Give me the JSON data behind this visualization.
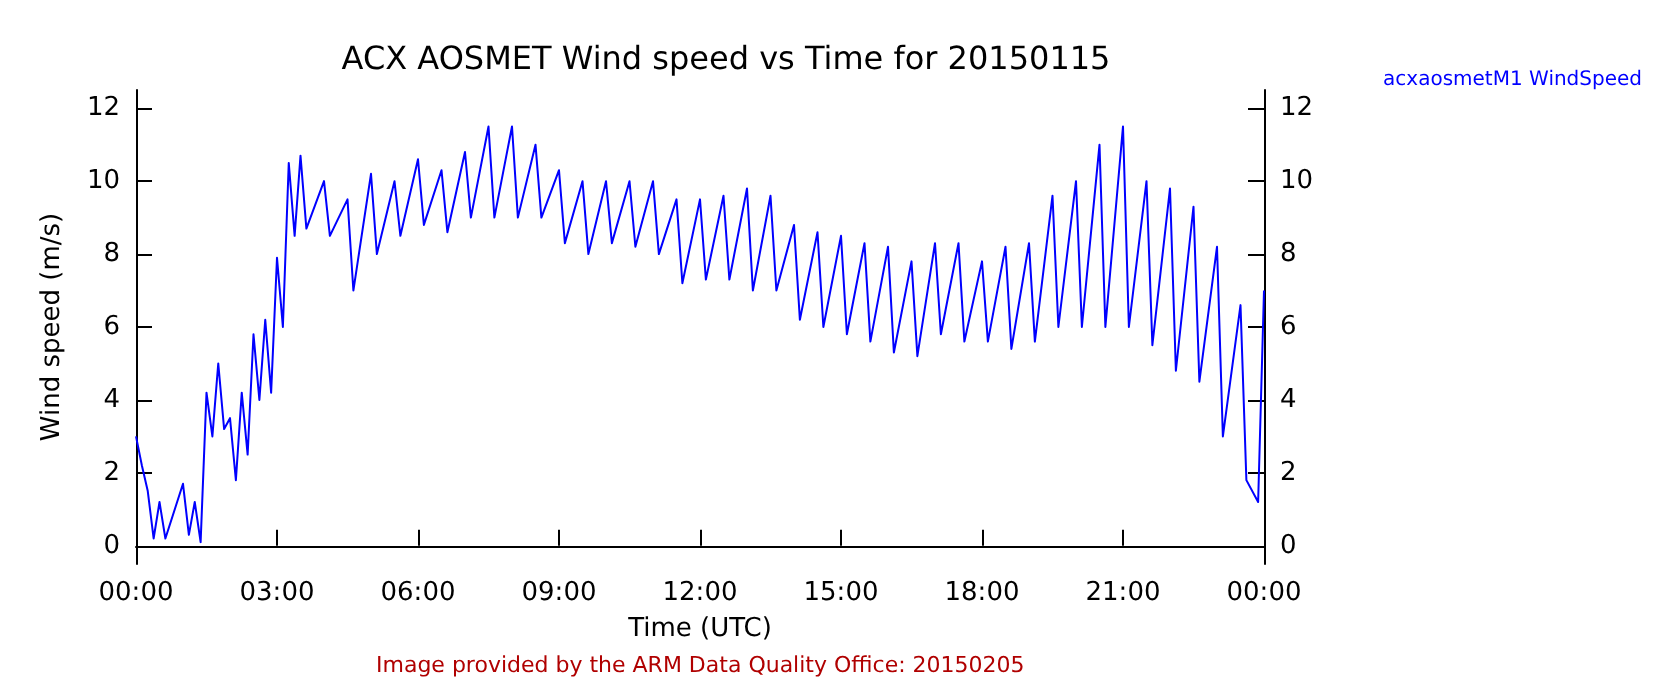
{
  "chart_data": {
    "type": "line",
    "title": "ACX AOSMET Wind speed vs Time for 20150115",
    "xlabel": "Time (UTC)",
    "ylabel": "Wind speed (m/s)",
    "x": [
      0,
      0.125,
      0.25,
      0.375,
      0.5,
      0.625,
      1,
      1.125,
      1.25,
      1.375,
      1.5,
      1.625,
      1.75,
      1.875,
      2,
      2.125,
      2.25,
      2.375,
      2.5,
      2.625,
      2.75,
      2.875,
      3,
      3.125,
      3.25,
      3.375,
      3.5,
      3.625,
      4,
      4.125,
      4.5,
      4.625,
      5,
      5.125,
      5.5,
      5.625,
      6,
      6.125,
      6.5,
      6.625,
      7,
      7.125,
      7.5,
      7.625,
      8,
      8.125,
      8.5,
      8.625,
      9,
      9.125,
      9.5,
      9.625,
      10,
      10.125,
      10.5,
      10.625,
      11,
      11.125,
      11.5,
      11.625,
      12,
      12.125,
      12.5,
      12.625,
      13,
      13.125,
      13.5,
      13.625,
      14,
      14.125,
      14.5,
      14.625,
      15,
      15.125,
      15.5,
      15.625,
      16,
      16.125,
      16.5,
      16.625,
      17,
      17.125,
      17.5,
      17.625,
      18,
      18.125,
      18.5,
      18.625,
      19,
      19.125,
      19.5,
      19.625,
      20,
      20.125,
      20.5,
      20.625,
      21,
      21.125,
      21.5,
      21.625,
      22,
      22.125,
      22.5,
      22.625,
      23,
      23.125,
      23.5,
      23.625,
      23.875,
      24
    ],
    "series": [
      {
        "name": "acxaosmetM1 WindSpeed",
        "color": "#0000ff",
        "values": [
          3,
          2.2,
          1.5,
          0.2,
          1.2,
          0.2,
          1.7,
          0.3,
          1.2,
          0.1,
          4.2,
          3,
          5,
          3.2,
          3.5,
          1.8,
          4.2,
          2.5,
          5.8,
          4,
          6.2,
          4.2,
          7.9,
          6,
          10.5,
          8.5,
          10.7,
          8.7,
          10,
          8.5,
          9.5,
          7,
          10.2,
          8,
          10,
          8.5,
          10.6,
          8.8,
          10.3,
          8.6,
          10.8,
          9,
          11.5,
          9,
          11.5,
          9,
          11,
          9,
          10.3,
          8.3,
          10,
          8,
          10,
          8.3,
          10,
          8.2,
          10,
          8,
          9.5,
          7.2,
          9.5,
          7.3,
          9.6,
          7.3,
          9.8,
          7,
          9.6,
          7,
          8.8,
          6.2,
          8.6,
          6,
          8.5,
          5.8,
          8.3,
          5.6,
          8.2,
          5.3,
          7.8,
          5.2,
          8.3,
          5.8,
          8.3,
          5.6,
          7.8,
          5.6,
          8.2,
          5.4,
          8.3,
          5.6,
          9.6,
          6,
          10,
          6,
          11,
          6,
          11.5,
          6,
          10,
          5.5,
          9.8,
          4.8,
          9.3,
          4.5,
          8.2,
          3,
          6.6,
          1.8,
          1.2,
          7
        ]
      }
    ],
    "xlim": [
      0,
      24
    ],
    "xticks": [
      {
        "value": 0,
        "label": "00:00"
      },
      {
        "value": 3,
        "label": "03:00"
      },
      {
        "value": 6,
        "label": "06:00"
      },
      {
        "value": 9,
        "label": "09:00"
      },
      {
        "value": 12,
        "label": "12:00"
      },
      {
        "value": 15,
        "label": "15:00"
      },
      {
        "value": 18,
        "label": "18:00"
      },
      {
        "value": 21,
        "label": "21:00"
      },
      {
        "value": 24,
        "label": "00:00"
      }
    ],
    "ylim": [
      -0.5,
      12.5
    ],
    "yticks": [
      0,
      2,
      4,
      6,
      8,
      10,
      12
    ],
    "y2lim": [
      -0.5,
      12.5
    ],
    "y2ticks": [
      0,
      2,
      4,
      6,
      8,
      10,
      12
    ],
    "legend": "top right",
    "grid": false,
    "marker": "none",
    "annotations": [
      "Image provided by the ARM Data Quality Office: 20150205"
    ]
  }
}
